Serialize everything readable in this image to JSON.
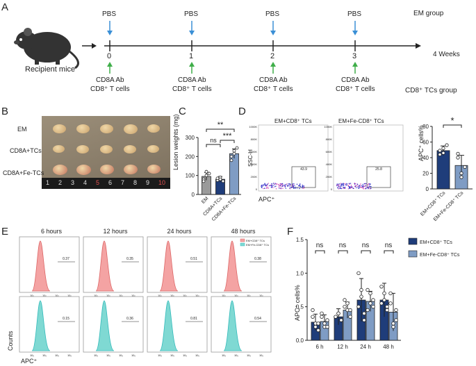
{
  "panels": {
    "a": "A",
    "b": "B",
    "c": "C",
    "d": "D",
    "e": "E",
    "f": "F"
  },
  "timeline": {
    "recipient_label": "Recipient mice",
    "ticks": [
      "0",
      "1",
      "2",
      "3"
    ],
    "top_label": "PBS",
    "bottom_label_1": "CD8A Ab",
    "bottom_label_2": "CD8⁺ T cells",
    "end_label": "4 Weeks",
    "group_top": "EM group",
    "group_bottom": "CD8⁺ TCs group",
    "colors": {
      "pbs_arrow": "#3a8fd6",
      "treat_arrow": "#3fae49"
    }
  },
  "photo": {
    "rows": [
      "EM",
      "CD8A+TCs",
      "CD8A+Fe-TCs"
    ],
    "ruler": [
      "1",
      "2",
      "3",
      "4",
      "5",
      "6",
      "7",
      "8",
      "9",
      "10"
    ]
  },
  "panel_c": {
    "ylabel": "Lesion weights (mg)",
    "ticks": [
      "0",
      "100",
      "200",
      "300"
    ],
    "categories": [
      "EM",
      "CD8A+TCs",
      "CD8A+Fe-TCs"
    ],
    "sig": [
      "ns",
      "**",
      "***"
    ]
  },
  "panel_d": {
    "plot1_title": "EM+CD8⁺ TCs",
    "plot2_title": "EM+Fe-CD8⁺ TCs",
    "gate1": "43.9",
    "gate2": "25.8",
    "ylabel": "SSC-H",
    "xlabel": "APC⁺",
    "ymaxticks": [
      "1000K",
      "800K",
      "600K",
      "400K",
      "200K",
      "0"
    ],
    "bar_ylabel": "APC⁺ cells%",
    "bar_ticks": [
      "0",
      "20",
      "40",
      "60",
      "80"
    ],
    "bar_categories": [
      "EM+CD8⁺ TCs",
      "EM+Fe-CD8⁺ TCs"
    ],
    "sig": "*"
  },
  "panel_e": {
    "times": [
      "6 hours",
      "12 hours",
      "24 hours",
      "48 hours"
    ],
    "top_gates": [
      "0.37",
      "0.35",
      "0.51",
      "0.38"
    ],
    "bottom_gates": [
      "0.15",
      "0.36",
      "0.81",
      "0.54"
    ],
    "legend": [
      "EM+CD8⁺ TCs",
      "EM+Fe-CD8⁺ TCs"
    ],
    "ylabel": "Counts",
    "xlabel": "APC⁺",
    "colors": {
      "top": "#f4a3a3",
      "bottom": "#7fd9d3"
    }
  },
  "panel_f": {
    "ylabel": "APC⁺ cells%",
    "sig": [
      "ns",
      "ns",
      "ns",
      "ns"
    ],
    "legend": [
      "EM+CD8⁺ TCs",
      "EM+Fe-CD8⁺ TCs"
    ],
    "colors": {
      "dark": "#1f3d7a",
      "light": "#7f9cc4"
    }
  },
  "chart_data": [
    {
      "type": "bar",
      "panel": "C",
      "categories": [
        "EM",
        "CD8A+TCs",
        "CD8A+Fe-TCs"
      ],
      "values": [
        95,
        80,
        215
      ],
      "errors": [
        20,
        15,
        25
      ],
      "points": [
        [
          80,
          100,
          110,
          70,
          120
        ],
        [
          75,
          90,
          70,
          85,
          80
        ],
        [
          200,
          230,
          245,
          180,
          215
        ]
      ],
      "ylabel": "Lesion weights (mg)",
      "ylim": [
        0,
        300
      ],
      "colors": [
        "#9a9a9a",
        "#1f3d7a",
        "#7f9cc4"
      ]
    },
    {
      "type": "bar",
      "panel": "D",
      "categories": [
        "EM+CD8⁺ TCs",
        "EM+Fe-CD8⁺ TCs"
      ],
      "values": [
        49,
        30
      ],
      "errors": [
        6,
        13
      ],
      "points": [
        [
          44,
          52,
          56,
          49,
          46
        ],
        [
          40,
          15,
          28,
          45,
          20
        ]
      ],
      "ylabel": "APC⁺ cells%",
      "ylim": [
        0,
        80
      ],
      "colors": [
        "#1f3d7a",
        "#7f9cc4"
      ]
    },
    {
      "type": "bar",
      "panel": "F",
      "categories": [
        "6 h",
        "12 h",
        "24 h",
        "48 h"
      ],
      "series": [
        {
          "name": "EM+CD8⁺ TCs",
          "values": [
            0.27,
            0.35,
            0.6,
            0.6
          ],
          "errors": [
            0.12,
            0.12,
            0.32,
            0.25
          ],
          "points": [
            [
              0.35,
              0.2,
              0.15,
              0.45,
              0.25,
              0.25
            ],
            [
              0.35,
              0.4,
              0.3,
              0.35,
              0.4,
              0.3
            ],
            [
              1.0,
              0.65,
              0.4,
              0.5,
              0.75,
              0.3
            ],
            [
              0.8,
              0.6,
              0.5,
              0.55,
              0.7,
              0.45
            ]
          ]
        },
        {
          "name": "EM+Fe-CD8⁺ TCs",
          "values": [
            0.28,
            0.45,
            0.58,
            0.42
          ],
          "errors": [
            0.1,
            0.12,
            0.15,
            0.28
          ],
          "points": [
            [
              0.35,
              0.2,
              0.3,
              0.4,
              0.25,
              0.2
            ],
            [
              0.6,
              0.45,
              0.35,
              0.5,
              0.55,
              0.45
            ],
            [
              0.75,
              0.55,
              0.6,
              0.45,
              0.7,
              0.5
            ],
            [
              0.7,
              0.2,
              0.45,
              0.55,
              0.25,
              0.3
            ]
          ]
        }
      ],
      "ylabel": "APC⁺ cells%",
      "ylim": [
        0,
        1.5
      ],
      "yticks": [
        "0.0",
        "0.5",
        "1.0",
        "1.5"
      ],
      "colors": [
        "#1f3d7a",
        "#7f9cc4"
      ]
    }
  ]
}
